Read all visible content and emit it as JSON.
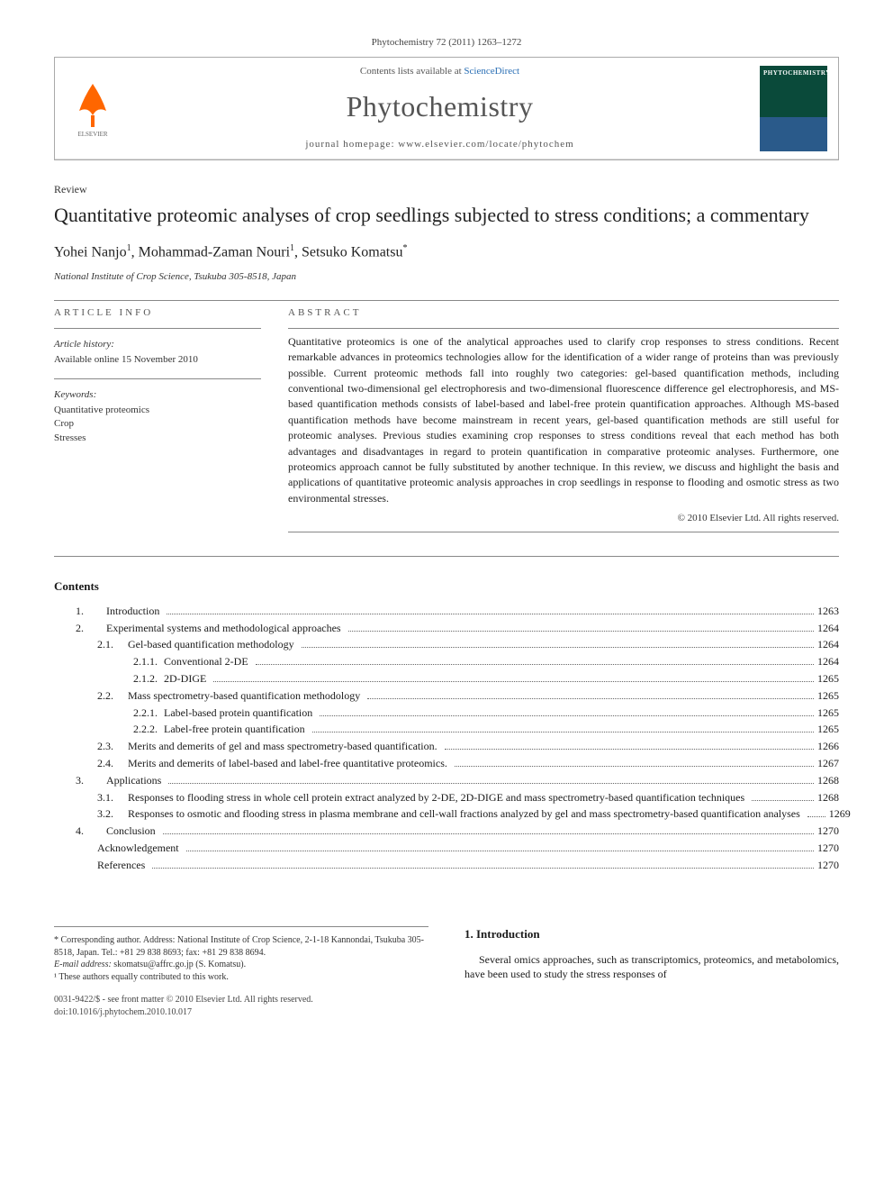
{
  "citation": "Phytochemistry 72 (2011) 1263–1272",
  "header": {
    "contents_available": "Contents lists available at ",
    "sciencedirect": "ScienceDirect",
    "journal_name": "Phytochemistry",
    "homepage_label": "journal homepage: www.elsevier.com/locate/phytochem",
    "cover_title": "PHYTOCHEMISTRY"
  },
  "article": {
    "type": "Review",
    "title": "Quantitative proteomic analyses of crop seedlings subjected to stress conditions; a commentary",
    "authors_html": "Yohei Nanjo",
    "author1": "Yohei Nanjo",
    "author2": "Mohammad-Zaman Nouri",
    "author3": "Setsuko Komatsu",
    "sup1": "1",
    "sup2": "1",
    "sup3": "*",
    "sep": ", ",
    "affiliation": "National Institute of Crop Science, Tsukuba 305-8518, Japan"
  },
  "info": {
    "section_label": "ARTICLE INFO",
    "history_heading": "Article history:",
    "history_line": "Available online 15 November 2010",
    "keywords_heading": "Keywords:",
    "kw1": "Quantitative proteomics",
    "kw2": "Crop",
    "kw3": "Stresses"
  },
  "abstract": {
    "section_label": "ABSTRACT",
    "text": "Quantitative proteomics is one of the analytical approaches used to clarify crop responses to stress conditions. Recent remarkable advances in proteomics technologies allow for the identification of a wider range of proteins than was previously possible. Current proteomic methods fall into roughly two categories: gel-based quantification methods, including conventional two-dimensional gel electrophoresis and two-dimensional fluorescence difference gel electrophoresis, and MS-based quantification methods consists of label-based and label-free protein quantification approaches. Although MS-based quantification methods have become mainstream in recent years, gel-based quantification methods are still useful for proteomic analyses. Previous studies examining crop responses to stress conditions reveal that each method has both advantages and disadvantages in regard to protein quantification in comparative proteomic analyses. Furthermore, one proteomics approach cannot be fully substituted by another technique. In this review, we discuss and highlight the basis and applications of quantitative proteomic analysis approaches in crop seedlings in response to flooding and osmotic stress as two environmental stresses.",
    "copyright": "© 2010 Elsevier Ltd. All rights reserved."
  },
  "contents": {
    "heading": "Contents",
    "items": [
      {
        "num": "1.",
        "label": "Introduction",
        "page": "1263",
        "indent": 1
      },
      {
        "num": "2.",
        "label": "Experimental systems and methodological approaches",
        "page": "1264",
        "indent": 1
      },
      {
        "num": "2.1.",
        "label": "Gel-based quantification methodology",
        "page": "1264",
        "indent": 2
      },
      {
        "num": "2.1.1.",
        "label": "Conventional 2-DE",
        "page": "1264",
        "indent": 3
      },
      {
        "num": "2.1.2.",
        "label": "2D-DIGE",
        "page": "1265",
        "indent": 3
      },
      {
        "num": "2.2.",
        "label": "Mass spectrometry-based quantification methodology",
        "page": "1265",
        "indent": 2
      },
      {
        "num": "2.2.1.",
        "label": "Label-based protein quantification",
        "page": "1265",
        "indent": 3
      },
      {
        "num": "2.2.2.",
        "label": "Label-free protein quantification",
        "page": "1265",
        "indent": 3
      },
      {
        "num": "2.3.",
        "label": "Merits and demerits of gel and mass spectrometry-based quantification.",
        "page": "1266",
        "indent": 2
      },
      {
        "num": "2.4.",
        "label": "Merits and demerits of label-based and label-free quantitative proteomics.",
        "page": "1267",
        "indent": 2
      },
      {
        "num": "3.",
        "label": "Applications",
        "page": "1268",
        "indent": 1
      },
      {
        "num": "3.1.",
        "label": "Responses to flooding stress in whole cell protein extract analyzed by 2-DE, 2D-DIGE and mass spectrometry-based quantification techniques",
        "page": "1268",
        "indent": 2
      },
      {
        "num": "3.2.",
        "label": "Responses to osmotic and flooding stress in plasma membrane and cell-wall fractions analyzed by gel and mass spectrometry-based quantification analyses",
        "page": "1269",
        "indent": 2
      },
      {
        "num": "4.",
        "label": "Conclusion",
        "page": "1270",
        "indent": 1
      },
      {
        "num": "",
        "label": "Acknowledgement",
        "page": "1270",
        "indent": 2
      },
      {
        "num": "",
        "label": "References",
        "page": "1270",
        "indent": 2
      }
    ]
  },
  "footer": {
    "corresponding": "* Corresponding author. Address: National Institute of Crop Science, 2-1-18 Kannondai, Tsukuba 305-8518, Japan. Tel.: +81 29 838 8693; fax: +81 29 838 8694.",
    "email_label": "E-mail address: ",
    "email": "skomatsu@affrc.go.jp",
    "email_suffix": " (S. Komatsu).",
    "note1": "¹ These authors equally contributed to this work.",
    "issn": "0031-9422/$ - see front matter © 2010 Elsevier Ltd. All rights reserved.",
    "doi": "doi:10.1016/j.phytochem.2010.10.017"
  },
  "intro": {
    "heading": "1. Introduction",
    "text": "Several omics approaches, such as transcriptomics, proteomics, and metabolomics, have been used to study the stress responses of"
  }
}
